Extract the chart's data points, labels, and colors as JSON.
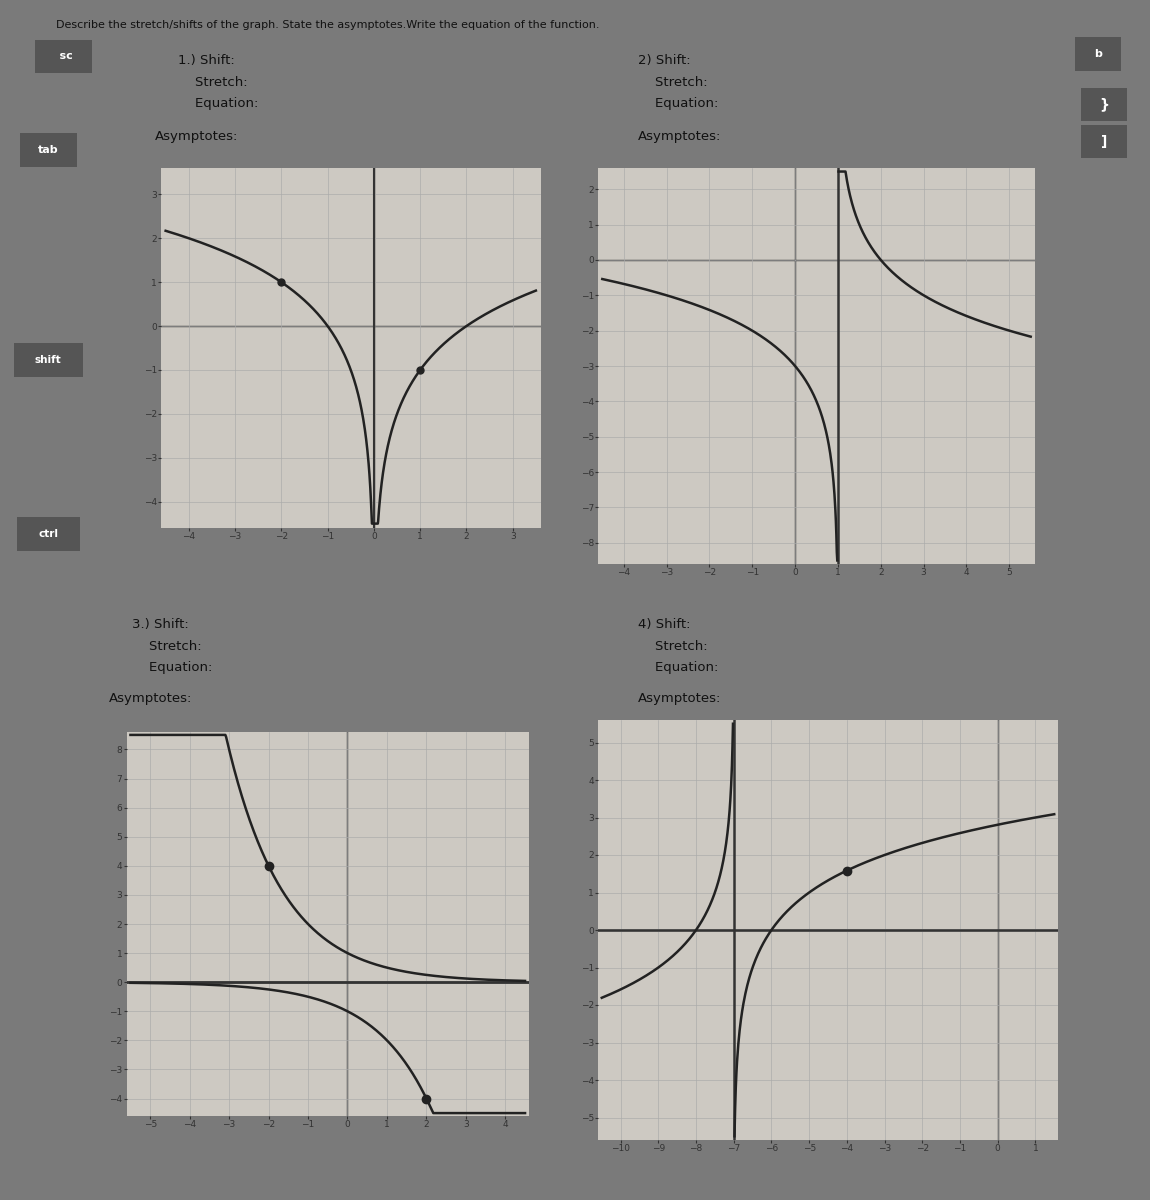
{
  "title_line1": "Describe the stretch/shifts of the graph. State the asymptotes.Write the equation of the function.",
  "paper_color": "#dedad4",
  "keyboard_color": "#7a7a7a",
  "grid_color": "#aaaaaa",
  "axis_color": "#333333",
  "curve_color": "#222222",
  "text_color": "#111111",
  "key_color": "#555555",
  "graph_bg": "#cdc9c2",
  "labels": {
    "q1_label": "1.) Shift:",
    "q1_stretch": "    Stretch:",
    "q1_equation": "    Equation:",
    "q2_label": "2) Shift:",
    "q2_stretch": "    Stretch:",
    "q2_equation": "    Equation:",
    "q1_asymptotes": "Asymptotes:",
    "q2_asymptotes": "Asymptotes:",
    "q3_label": "3.) Shift:",
    "q3_stretch": "    Stretch:",
    "q3_equation": "    Equation:",
    "q3_asymptotes": "Asymptotes:",
    "q4_label": "4) Shift:",
    "q4_stretch": "    Stretch:",
    "q4_equation": "    Equation:",
    "q4_asymptotes": "Asymptotes:"
  },
  "g1": {
    "xlim": [
      -4.6,
      3.6
    ],
    "ylim": [
      -4.6,
      3.6
    ],
    "xticks": [
      -4,
      -3,
      -2,
      -1,
      0,
      1,
      2,
      3
    ],
    "yticks": [
      -4,
      -3,
      -2,
      -1,
      0,
      1,
      2,
      3
    ]
  },
  "g2": {
    "xlim": [
      -4.6,
      5.6
    ],
    "ylim": [
      -8.6,
      2.6
    ],
    "xticks": [
      -4,
      -3,
      -2,
      -1,
      0,
      1,
      2,
      3,
      4,
      5
    ],
    "yticks": [
      -8,
      -7,
      -6,
      -5,
      -4,
      -3,
      -2,
      -1,
      0,
      1,
      2
    ]
  },
  "g3": {
    "xlim": [
      -5.6,
      4.6
    ],
    "ylim": [
      -4.6,
      8.6
    ],
    "xticks": [
      -5,
      -4,
      -3,
      -2,
      -1,
      0,
      1,
      2,
      3,
      4
    ],
    "yticks": [
      -4,
      -3,
      -2,
      -1,
      0,
      1,
      2,
      3,
      4,
      5,
      6,
      7,
      8
    ]
  },
  "g4": {
    "xlim": [
      -10.6,
      1.6
    ],
    "ylim": [
      -5.6,
      5.6
    ],
    "xticks": [
      -10,
      -9,
      -8,
      -7,
      -6,
      -5,
      -4,
      -3,
      -2,
      -1,
      0,
      1
    ],
    "yticks": [
      -5,
      -4,
      -3,
      -2,
      -1,
      0,
      1,
      2,
      3,
      4,
      5
    ]
  }
}
